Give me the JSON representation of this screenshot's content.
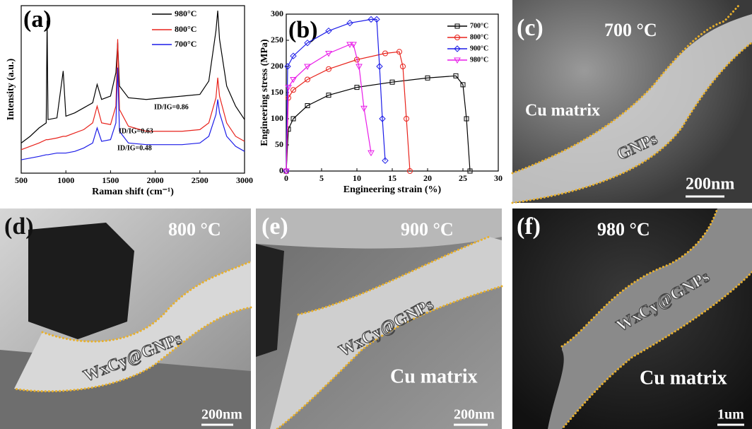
{
  "chart_data": [
    {
      "type": "line",
      "title": "(a)",
      "x_label": "Raman shift (cm⁻¹)",
      "y_label": "Intensity (a.u.)",
      "x": [
        500,
        600,
        700,
        780,
        790,
        800,
        900,
        970,
        1000,
        1100,
        1200,
        1300,
        1350,
        1400,
        1500,
        1560,
        1580,
        1600,
        1700,
        1900,
        2100,
        2300,
        2500,
        2600,
        2680,
        2700,
        2720,
        2800,
        2900,
        3000
      ],
      "series": [
        {
          "name": "980°C",
          "color": "#000000",
          "values": [
            18,
            22,
            27,
            30,
            91,
            32,
            33,
            61,
            34,
            36,
            39,
            42,
            53,
            44,
            46,
            60,
            78,
            52,
            45,
            44,
            45,
            46,
            47,
            55,
            85,
            97,
            80,
            52,
            40,
            32
          ]
        },
        {
          "name": "800°C",
          "color": "#e8231c",
          "values": [
            14,
            16,
            18,
            20,
            20,
            20,
            21,
            22,
            22,
            24,
            26,
            30,
            40,
            30,
            29,
            40,
            80,
            38,
            28,
            25,
            25,
            25,
            26,
            30,
            45,
            57,
            46,
            30,
            22,
            19
          ]
        },
        {
          "name": "700°C",
          "color": "#1c1ce8",
          "values": [
            8,
            9,
            10,
            11,
            11,
            11,
            12,
            12,
            12,
            13,
            15,
            18,
            27,
            19,
            20,
            30,
            63,
            25,
            18,
            17,
            17,
            17,
            18,
            22,
            35,
            44,
            36,
            22,
            16,
            13
          ]
        }
      ],
      "annotations": [
        "ID/IG=0.86",
        "ID/IG=0.63",
        "ID/IG=0.48"
      ],
      "xlim": [
        500,
        3000
      ],
      "xticks": [
        500,
        1000,
        1500,
        2000,
        2500,
        3000
      ],
      "ylim": [
        0,
        100
      ]
    },
    {
      "type": "line",
      "title": "(b)",
      "x_label": "Engineering strain (%)",
      "y_label": "Engineering stress (MPa)",
      "series": [
        {
          "name": "700°C",
          "color": "#000000",
          "marker": "square",
          "x": [
            0,
            0.3,
            1,
            3,
            6,
            10,
            15,
            20,
            24,
            25,
            25.5,
            26
          ],
          "values": [
            0,
            80,
            100,
            125,
            145,
            160,
            170,
            178,
            182,
            165,
            100,
            0
          ]
        },
        {
          "name": "800°C",
          "color": "#e8231c",
          "marker": "circle",
          "x": [
            0,
            0.3,
            1,
            3,
            6,
            10,
            14,
            16,
            16.5,
            17,
            17.5
          ],
          "values": [
            0,
            140,
            155,
            175,
            195,
            213,
            225,
            228,
            200,
            100,
            0
          ]
        },
        {
          "name": "900°C",
          "color": "#1c1ce8",
          "marker": "diamond",
          "x": [
            0,
            0.2,
            1,
            3,
            6,
            9,
            12,
            12.8,
            13.2,
            13.6,
            14
          ],
          "values": [
            0,
            200,
            220,
            245,
            268,
            283,
            290,
            290,
            200,
            100,
            20
          ]
        },
        {
          "name": "980°C",
          "color": "#e81ce8",
          "marker": "triangle",
          "x": [
            0,
            0.3,
            1,
            3,
            6,
            9,
            9.5,
            10.3,
            11,
            12
          ],
          "values": [
            0,
            160,
            175,
            200,
            225,
            242,
            242,
            200,
            120,
            35
          ]
        }
      ],
      "xlim": [
        0,
        30
      ],
      "xticks": [
        0,
        5,
        10,
        15,
        20,
        25,
        30
      ],
      "ylim": [
        0,
        300
      ],
      "yticks": [
        0,
        50,
        100,
        150,
        200,
        250,
        300
      ]
    }
  ],
  "panels": [
    {
      "label": "(c)",
      "temperature": "700 °C",
      "texts": [
        "Cu matrix",
        "GNPs"
      ],
      "scale_bar": "200nm"
    },
    {
      "label": "(d)",
      "temperature": "800 °C",
      "texts": [
        "WxCy@GNPs"
      ],
      "scale_bar": "200nm"
    },
    {
      "label": "(e)",
      "temperature": "900 °C",
      "texts": [
        "WxCy@GNPs",
        "Cu matrix"
      ],
      "scale_bar": "200nm"
    },
    {
      "label": "(f)",
      "temperature": "980 °C",
      "texts": [
        "WxCy@GNPs",
        "Cu matrix"
      ],
      "scale_bar": "1um"
    }
  ]
}
